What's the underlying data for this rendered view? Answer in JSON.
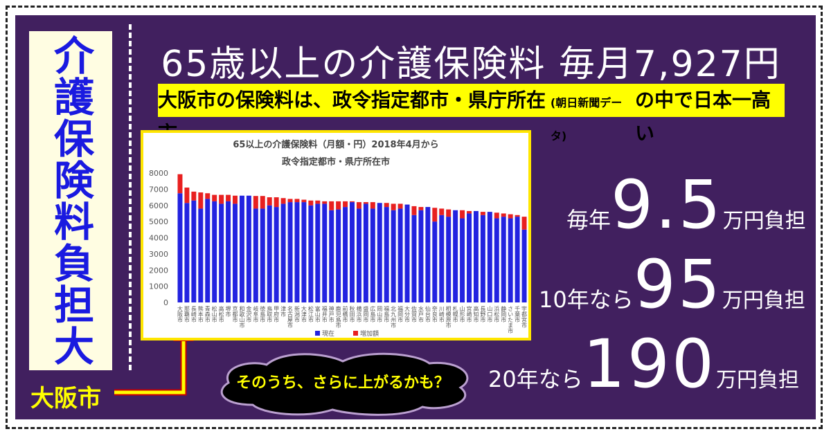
{
  "title": "65歳以上の介護保険料 毎月7,927円",
  "side_label": "介護保険料負担大",
  "banner": {
    "main1": "大阪市の保険料は、政令指定都市・県庁所在市",
    "note": "(朝日新聞データ)",
    "main2": "の中で日本一高い"
  },
  "costs": [
    {
      "prefix": "毎年",
      "amount": "9.5",
      "suffix": "万円負担"
    },
    {
      "prefix": "10年なら",
      "amount": "95",
      "suffix": "万円負担"
    },
    {
      "prefix": "20年なら",
      "amount": "190",
      "suffix": "万円負担"
    }
  ],
  "callout": "大阪市",
  "cloud": "そのうち、さらに上がるかも？",
  "chart_data": {
    "type": "stacked_bar",
    "title": "65以上の介護保険料（月額・円）2018年4月から",
    "subtitle": "政令指定都市・県庁所在市",
    "categories": [
      "大阪市",
      "那覇市",
      "長崎市",
      "熊本市",
      "青森市",
      "松山市",
      "高松市",
      "堺市",
      "京都市",
      "和歌山市",
      "金沢市",
      "岐阜市",
      "徳島市",
      "鳥取市",
      "甲府市",
      "津市",
      "名古屋市",
      "新潟市",
      "大津市",
      "松江市",
      "富山市",
      "福井市",
      "神戸市",
      "鹿児島市",
      "前橋市",
      "秋田市",
      "横浜市",
      "盛岡市",
      "広島市",
      "岡山市",
      "福島市",
      "北九州市",
      "福岡市",
      "大分市",
      "佐賀市",
      "水戸市",
      "仙台市",
      "奈良市",
      "川崎市",
      "相模原市",
      "札幌市",
      "山形市",
      "宮崎市",
      "高知市",
      "長野市",
      "山口市",
      "浜松市",
      "静岡市",
      "さいたま市",
      "千葉市",
      "宇都宮市"
    ],
    "series": [
      {
        "name": "現在",
        "color": "#2323e0",
        "values": [
          6750,
          6150,
          6300,
          5800,
          6400,
          6250,
          6100,
          6250,
          6100,
          6600,
          6600,
          5800,
          5800,
          6000,
          5900,
          6100,
          6200,
          6200,
          6200,
          6000,
          6100,
          6100,
          5700,
          5750,
          5900,
          6200,
          5800,
          6100,
          5800,
          6150,
          5900,
          5700,
          5800,
          6050,
          5400,
          5700,
          5900,
          5000,
          5400,
          5300,
          5700,
          5200,
          5500,
          5650,
          5400,
          5600,
          5200,
          5300,
          5200,
          5300,
          4500
        ]
      },
      {
        "name": "増加額",
        "color": "#e82020",
        "values": [
          1177,
          950,
          550,
          1000,
          350,
          400,
          550,
          400,
          500,
          0,
          0,
          780,
          780,
          500,
          600,
          350,
          200,
          200,
          150,
          300,
          200,
          150,
          550,
          500,
          350,
          50,
          400,
          100,
          400,
          0,
          250,
          400,
          300,
          0,
          550,
          200,
          0,
          850,
          400,
          450,
          0,
          500,
          150,
          0,
          200,
          0,
          350,
          200,
          250,
          100,
          800
        ]
      }
    ],
    "ylim": [
      0,
      8000
    ],
    "yticks": [
      0,
      1000,
      2000,
      3000,
      4000,
      5000,
      6000,
      7000,
      8000
    ],
    "grid": false,
    "legend": "bottom"
  }
}
